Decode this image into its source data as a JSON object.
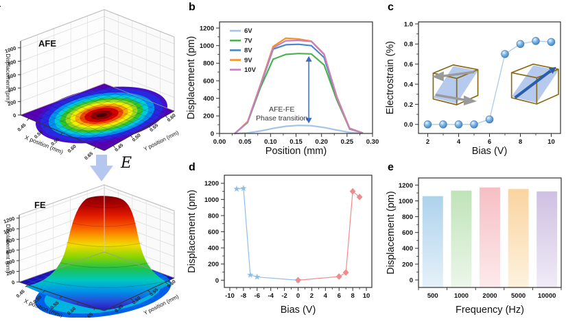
{
  "panels": {
    "a": {
      "letter": "a",
      "arrow_label": "E"
    },
    "b": {
      "letter": "b"
    },
    "c": {
      "letter": "c"
    },
    "d": {
      "letter": "d"
    },
    "e": {
      "letter": "e"
    }
  },
  "colors": {
    "field_arrow_fill": "#b5c7ef",
    "cube_edge": "#8a6a14",
    "cube_plane": "#afc6ec",
    "afe_dipole_arrows": "#9a9a9a",
    "fe_dipole_arrow": "#2b5ea8",
    "annotation_arrow": "#3a6cc8"
  },
  "chart_data": {
    "a_top": {
      "type": "surface3d",
      "label": "AFE",
      "zlabel": "Displacement (pm)",
      "zticks": [
        0,
        200,
        400,
        600,
        800,
        1000
      ],
      "xlabel": "X position (mm)",
      "ylabel": "Y position (mm)",
      "xticks": [
        "0.45",
        "0.50",
        "0.55",
        "0.60",
        "0.65"
      ],
      "yticks": [
        "0.45",
        "0.50",
        "0.55",
        "0.60"
      ],
      "description": "Flat surface on bottom plane with circular rainbow contour peak (red center) near middle"
    },
    "a_bottom": {
      "type": "surface3d",
      "label": "FE",
      "zlabel": "Displacement (pm)",
      "zticks": [
        0,
        200,
        400,
        600,
        800,
        1000,
        1200
      ],
      "xlabel": "X position (mm)",
      "ylabel": "Y position (mm)",
      "xticks": [
        "0.45",
        "0.50",
        "0.55",
        "0.60",
        "0.65"
      ],
      "yticks": [
        "0.45",
        "0.50",
        "0.55",
        "0.60"
      ],
      "description": "Tall bell-shaped rainbow surface peaking near 1200 pm at center"
    },
    "b": {
      "type": "line",
      "xlabel": "Position (mm)",
      "ylabel": "Displacement (pm)",
      "xlim": [
        0,
        0.3
      ],
      "ylim": [
        0,
        1270
      ],
      "xticks": [
        0,
        0.05,
        0.1,
        0.15,
        0.2,
        0.25,
        0.3
      ],
      "xtick_decimals": 2,
      "yticks": [
        0,
        200,
        400,
        600,
        800,
        1000,
        1200
      ],
      "x": [
        0.03,
        0.055,
        0.08,
        0.105,
        0.13,
        0.155,
        0.18,
        0.205,
        0.23,
        0.255,
        0.28
      ],
      "series": [
        {
          "name": "6V",
          "color": "#a3c3e8",
          "values": [
            0,
            6,
            28,
            58,
            82,
            92,
            88,
            68,
            38,
            12,
            2
          ]
        },
        {
          "name": "7V",
          "color": "#4bb24c",
          "values": [
            0,
            125,
            520,
            845,
            900,
            910,
            905,
            780,
            380,
            55,
            8
          ]
        },
        {
          "name": "8V",
          "color": "#4a86c8",
          "values": [
            0,
            130,
            540,
            960,
            1010,
            1015,
            1000,
            865,
            400,
            50,
            8
          ]
        },
        {
          "name": "9V",
          "color": "#f79421",
          "values": [
            0,
            135,
            555,
            990,
            1085,
            1075,
            1050,
            905,
            410,
            55,
            8
          ]
        },
        {
          "name": "10V",
          "color": "#c97fc0",
          "values": [
            0,
            130,
            548,
            975,
            1055,
            1060,
            1048,
            898,
            420,
            60,
            8
          ]
        }
      ],
      "legend_position": "top-left",
      "annotation": {
        "text_lines": [
          "AFE-FE",
          "Phase transition"
        ],
        "arrow_x": 0.175,
        "arrow_y1": 115,
        "arrow_y2": 880,
        "text_x": 0.122,
        "text_y": 250,
        "color": "#3a6cc8"
      }
    },
    "c": {
      "type": "scatter",
      "xlabel": "Bias (V)",
      "ylabel": "Electrostrain (%)",
      "xlim": [
        1.4,
        10.6
      ],
      "ylim": [
        -0.09,
        1.02
      ],
      "xticks": [
        2,
        4,
        6,
        8,
        10
      ],
      "yticks": [
        0.0,
        0.2,
        0.4,
        0.6,
        0.8,
        1.0
      ],
      "ytick_decimals": 1,
      "x": [
        2,
        3,
        4,
        5,
        6,
        7,
        8,
        9,
        10
      ],
      "y": [
        0.0,
        0.0,
        0.0,
        0.0,
        0.05,
        0.7,
        0.8,
        0.83,
        0.82
      ],
      "marker": "sphere",
      "marker_color": "#5b9bd5",
      "line_color": "#a9cbe8"
    },
    "d": {
      "type": "scatter-multi",
      "xlabel": "Bias (V)",
      "ylabel": "Displacement (pm)",
      "xlim": [
        -10.8,
        10.8
      ],
      "ylim": [
        -90,
        1300
      ],
      "xticks": [
        -10,
        -8,
        -6,
        -4,
        -2,
        0,
        2,
        4,
        6,
        8,
        10
      ],
      "yticks": [
        0,
        200,
        400,
        600,
        800,
        1000,
        1200
      ],
      "series": [
        {
          "name": "negative-bias",
          "marker": "star",
          "color": "#8fbfe8",
          "x": [
            -9,
            -8,
            -7,
            -6,
            0
          ],
          "y": [
            1130,
            1138,
            65,
            40,
            0
          ]
        },
        {
          "name": "positive-bias",
          "marker": "diamond",
          "color": "#f08b8b",
          "x": [
            0,
            6,
            7,
            8,
            9
          ],
          "y": [
            0,
            45,
            95,
            1100,
            1030
          ]
        }
      ]
    },
    "e": {
      "type": "bar",
      "xlabel": "Frequency (Hz)",
      "ylabel": "Displacement (pm)",
      "categories": [
        "500",
        "1000",
        "2000",
        "5000",
        "10000"
      ],
      "values": [
        1060,
        1130,
        1170,
        1150,
        1120
      ],
      "ylim": [
        -95,
        1290
      ],
      "yticks": [
        0,
        200,
        400,
        600,
        800,
        1000,
        1200
      ],
      "bar_colors_top": [
        "#aed2ec",
        "#bfe3b8",
        "#f5bfc4",
        "#fad4a0",
        "#cfc0e2"
      ],
      "bar_colors_bottom": [
        "#e6f1f9",
        "#ecf7ea",
        "#fdeaec",
        "#fdf2de",
        "#f0ebf7"
      ]
    }
  }
}
